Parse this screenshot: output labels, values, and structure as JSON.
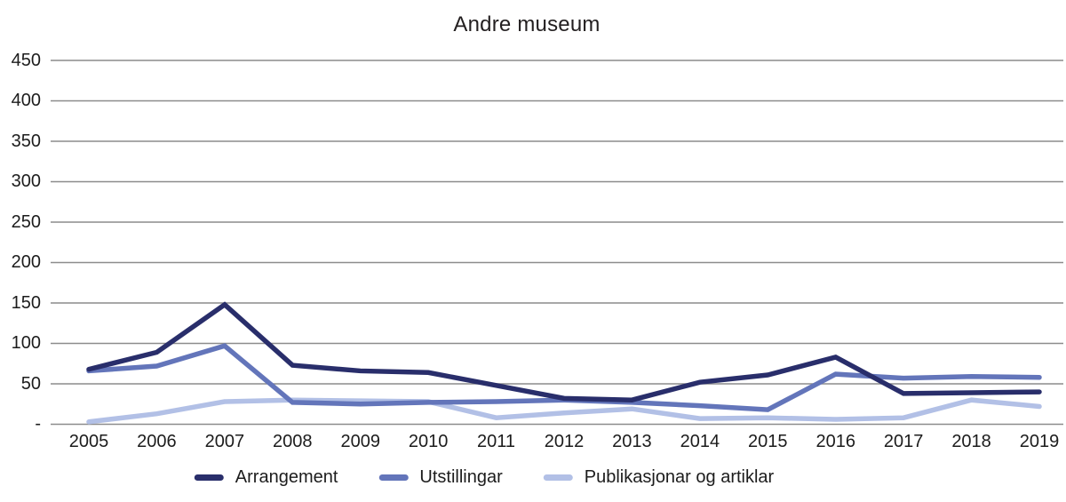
{
  "title": "Andre museum",
  "colors": {
    "grid": "#8c8c8c",
    "text": "#1c1c1c"
  },
  "chart_data": {
    "type": "line",
    "title": "Andre museum",
    "xlabel": "",
    "ylabel": "",
    "x": [
      "2005",
      "2006",
      "2007",
      "2008",
      "2009",
      "2010",
      "2011",
      "2012",
      "2013",
      "2014",
      "2015",
      "2016",
      "2017",
      "2018",
      "2019"
    ],
    "ylim": [
      0,
      450
    ],
    "ytick_step": 50,
    "ytick_labels": [
      "-",
      "50",
      "100",
      "150",
      "200",
      "250",
      "300",
      "350",
      "400",
      "450"
    ],
    "grid": true,
    "legend_position": "bottom",
    "series": [
      {
        "name": "Arrangement",
        "color": "#292e6b",
        "values": [
          68,
          89,
          148,
          73,
          66,
          64,
          48,
          32,
          30,
          52,
          61,
          83,
          38,
          39,
          40
        ]
      },
      {
        "name": "Utstillingar",
        "color": "#6375ba",
        "values": [
          66,
          72,
          97,
          27,
          25,
          27,
          28,
          30,
          27,
          23,
          18,
          62,
          57,
          59,
          58
        ]
      },
      {
        "name": "Publikasjonar og artiklar",
        "color": "#b2c0e6",
        "values": [
          3,
          13,
          28,
          30,
          29,
          28,
          8,
          14,
          19,
          7,
          8,
          6,
          8,
          30,
          22
        ]
      }
    ]
  }
}
